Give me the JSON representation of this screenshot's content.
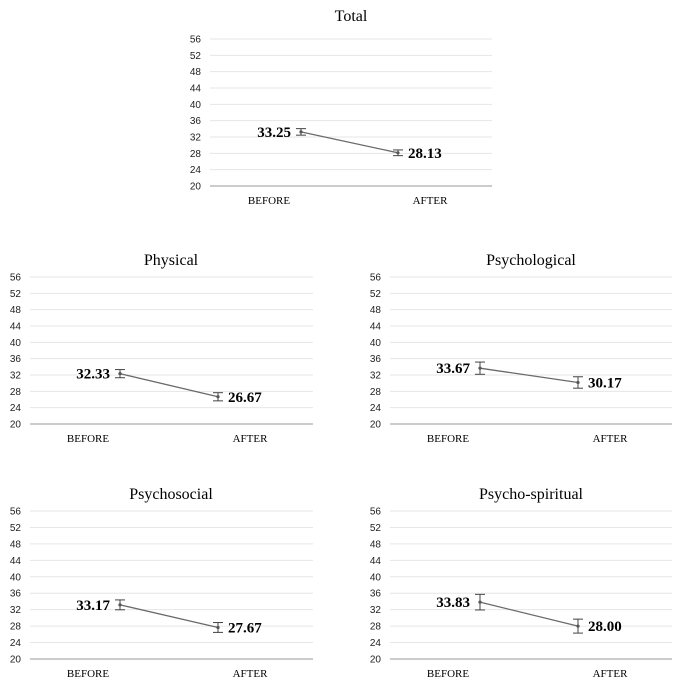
{
  "chart_data": [
    {
      "type": "line",
      "title": "Total",
      "categories": [
        "BEFORE",
        "AFTER"
      ],
      "values": [
        33.25,
        28.13
      ],
      "data_labels": [
        "33.25",
        "28.13"
      ],
      "error": [
        0.8,
        0.7
      ],
      "ylim": [
        20,
        56
      ],
      "yticks": [
        "20",
        "24",
        "28",
        "32",
        "36",
        "40",
        "44",
        "48",
        "52",
        "56"
      ],
      "grid": true
    },
    {
      "type": "line",
      "title": "Physical",
      "categories": [
        "BEFORE",
        "AFTER"
      ],
      "values": [
        32.33,
        26.67
      ],
      "data_labels": [
        "32.33",
        "26.67"
      ],
      "error": [
        1.0,
        1.0
      ],
      "ylim": [
        20,
        56
      ],
      "yticks": [
        "20",
        "24",
        "28",
        "32",
        "36",
        "40",
        "44",
        "48",
        "52",
        "56"
      ],
      "grid": true
    },
    {
      "type": "line",
      "title": "Psychological",
      "categories": [
        "BEFORE",
        "AFTER"
      ],
      "values": [
        33.67,
        30.17
      ],
      "data_labels": [
        "33.67",
        "30.17"
      ],
      "error": [
        1.5,
        1.4
      ],
      "ylim": [
        20,
        56
      ],
      "yticks": [
        "20",
        "24",
        "28",
        "32",
        "36",
        "40",
        "44",
        "48",
        "52",
        "56"
      ],
      "grid": true
    },
    {
      "type": "line",
      "title": "Psychosocial",
      "categories": [
        "BEFORE",
        "AFTER"
      ],
      "values": [
        33.17,
        27.67
      ],
      "data_labels": [
        "33.17",
        "27.67"
      ],
      "error": [
        1.2,
        1.2
      ],
      "ylim": [
        20,
        56
      ],
      "yticks": [
        "20",
        "24",
        "28",
        "32",
        "36",
        "40",
        "44",
        "48",
        "52",
        "56"
      ],
      "grid": true
    },
    {
      "type": "line",
      "title": "Psycho-spiritual",
      "categories": [
        "BEFORE",
        "AFTER"
      ],
      "values": [
        33.83,
        28.0
      ],
      "data_labels": [
        "33.83",
        "28.00"
      ],
      "error": [
        1.9,
        1.7
      ],
      "ylim": [
        20,
        56
      ],
      "yticks": [
        "20",
        "24",
        "28",
        "32",
        "36",
        "40",
        "44",
        "48",
        "52",
        "56"
      ],
      "grid": true
    }
  ]
}
